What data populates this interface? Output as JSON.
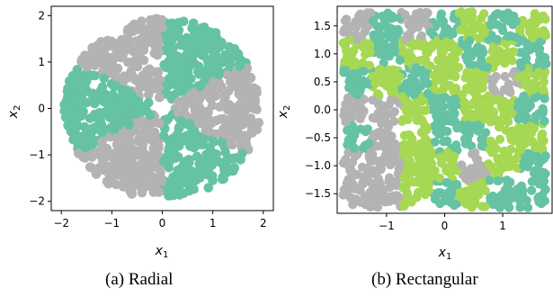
{
  "chart_data": [
    {
      "type": "scatter",
      "caption": "(a) Radial",
      "xlabel": "x",
      "xlabel_sub": "1",
      "ylabel": "x",
      "ylabel_sub": "2",
      "xlim": [
        -2.2,
        2.2
      ],
      "ylim": [
        -2.2,
        2.2
      ],
      "xticks": [
        -2,
        -1,
        0,
        1,
        2
      ],
      "xtick_labels": [
        "−2",
        "−1",
        "0",
        "1",
        "2"
      ],
      "yticks": [
        -2,
        -1,
        0,
        1,
        2
      ],
      "ytick_labels": [
        "−2",
        "−1",
        "0",
        "1",
        "2"
      ],
      "grid": false,
      "legend": "none",
      "pattern": "radial",
      "radius_range": [
        0.2,
        1.95
      ],
      "angular_sectors": 6,
      "class_colors": [
        "#66c2a5",
        "#b3b3b3"
      ],
      "sector_classes": [
        {
          "from_deg": 30,
          "to_deg": 90,
          "class": 0
        },
        {
          "from_deg": 90,
          "to_deg": 150,
          "class": 1
        },
        {
          "from_deg": 150,
          "to_deg": 210,
          "class": 0
        },
        {
          "from_deg": 210,
          "to_deg": 270,
          "class": 1
        },
        {
          "from_deg": 270,
          "to_deg": 330,
          "class": 0
        },
        {
          "from_deg": 330,
          "to_deg": 390,
          "class": 1
        }
      ]
    },
    {
      "type": "scatter",
      "caption": "(b) Rectangular",
      "xlabel": "x",
      "xlabel_sub": "1",
      "ylabel": "x",
      "ylabel_sub": "2",
      "xlim": [
        -1.85,
        1.85
      ],
      "ylim": [
        -1.85,
        1.85
      ],
      "xticks": [
        -1,
        0,
        1
      ],
      "xtick_labels": [
        "−1",
        "0",
        "1"
      ],
      "yticks": [
        1.5,
        1.0,
        0.5,
        0.0,
        -0.5,
        -1.0,
        -1.5
      ],
      "ytick_labels": [
        "1.5",
        "1.0",
        "0.5",
        "0.0",
        "−0.5",
        "−1.0",
        "−1.5"
      ],
      "grid": false,
      "legend": "none",
      "pattern": "rectangular",
      "domain": [
        -1.75,
        1.75
      ],
      "class_colors": [
        "#b3b3b3",
        "#66c2a5",
        "#a6d854"
      ],
      "grid_cells": [
        [
          0,
          1,
          0,
          1,
          2,
          1,
          2
        ],
        [
          2,
          1,
          2,
          2,
          1,
          2,
          1
        ],
        [
          1,
          2,
          1,
          2,
          2,
          0,
          2
        ],
        [
          0,
          0,
          2,
          1,
          2,
          2,
          1
        ],
        [
          1,
          0,
          2,
          1,
          1,
          2,
          2
        ],
        [
          0,
          0,
          2,
          2,
          0,
          2,
          1
        ],
        [
          0,
          0,
          2,
          1,
          2,
          1,
          1
        ]
      ]
    }
  ]
}
